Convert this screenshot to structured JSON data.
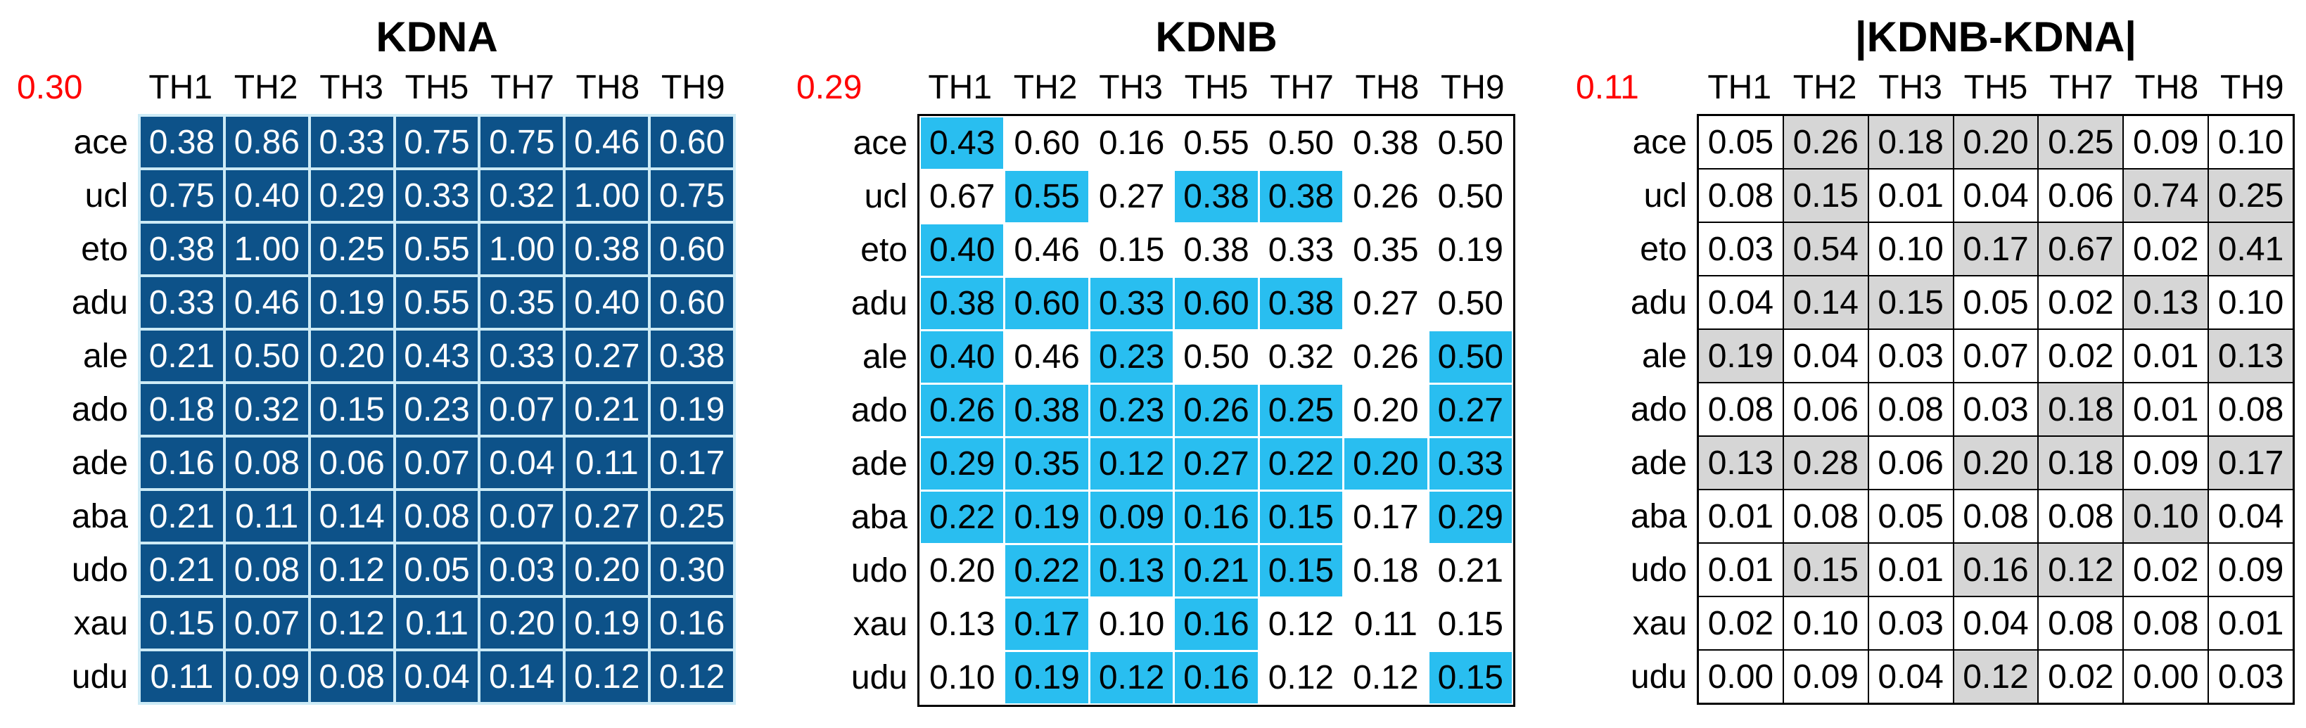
{
  "figure": {
    "background": "#FFFFFF",
    "threshold_color": "#FF0000"
  },
  "chart_data": [
    {
      "type": "heatmap",
      "title": "KDNA",
      "threshold": "0.30",
      "columns": [
        "TH1",
        "TH2",
        "TH3",
        "TH5",
        "TH7",
        "TH8",
        "TH9"
      ],
      "rows": [
        "ace",
        "ucl",
        "eto",
        "adu",
        "ale",
        "ado",
        "ade",
        "aba",
        "udo",
        "xau",
        "udu"
      ],
      "values": [
        [
          "0.38",
          "0.86",
          "0.33",
          "0.75",
          "0.75",
          "0.46",
          "0.60"
        ],
        [
          "0.75",
          "0.40",
          "0.29",
          "0.33",
          "0.32",
          "1.00",
          "0.75"
        ],
        [
          "0.38",
          "1.00",
          "0.25",
          "0.55",
          "1.00",
          "0.38",
          "0.60"
        ],
        [
          "0.33",
          "0.46",
          "0.19",
          "0.55",
          "0.35",
          "0.40",
          "0.60"
        ],
        [
          "0.21",
          "0.50",
          "0.20",
          "0.43",
          "0.33",
          "0.27",
          "0.38"
        ],
        [
          "0.18",
          "0.32",
          "0.15",
          "0.23",
          "0.07",
          "0.21",
          "0.19"
        ],
        [
          "0.16",
          "0.08",
          "0.06",
          "0.07",
          "0.04",
          "0.11",
          "0.17"
        ],
        [
          "0.21",
          "0.11",
          "0.14",
          "0.08",
          "0.07",
          "0.27",
          "0.25"
        ],
        [
          "0.21",
          "0.08",
          "0.12",
          "0.05",
          "0.03",
          "0.20",
          "0.30"
        ],
        [
          "0.15",
          "0.07",
          "0.12",
          "0.11",
          "0.20",
          "0.19",
          "0.16"
        ],
        [
          "0.11",
          "0.09",
          "0.08",
          "0.04",
          "0.14",
          "0.12",
          "0.12"
        ]
      ],
      "highlight": null,
      "style": {
        "cell_bg": "#0D5289",
        "cell_text": "#FFFFFF",
        "grid_color": "#CDEBF6"
      }
    },
    {
      "type": "heatmap",
      "title": "KDNB",
      "threshold": "0.29",
      "columns": [
        "TH1",
        "TH2",
        "TH3",
        "TH5",
        "TH7",
        "TH8",
        "TH9"
      ],
      "rows": [
        "ace",
        "ucl",
        "eto",
        "adu",
        "ale",
        "ado",
        "ade",
        "aba",
        "udo",
        "xau",
        "udu"
      ],
      "values": [
        [
          "0.43",
          "0.60",
          "0.16",
          "0.55",
          "0.50",
          "0.38",
          "0.50"
        ],
        [
          "0.67",
          "0.55",
          "0.27",
          "0.38",
          "0.38",
          "0.26",
          "0.50"
        ],
        [
          "0.40",
          "0.46",
          "0.15",
          "0.38",
          "0.33",
          "0.35",
          "0.19"
        ],
        [
          "0.38",
          "0.60",
          "0.33",
          "0.60",
          "0.38",
          "0.27",
          "0.50"
        ],
        [
          "0.40",
          "0.46",
          "0.23",
          "0.50",
          "0.32",
          "0.26",
          "0.50"
        ],
        [
          "0.26",
          "0.38",
          "0.23",
          "0.26",
          "0.25",
          "0.20",
          "0.27"
        ],
        [
          "0.29",
          "0.35",
          "0.12",
          "0.27",
          "0.22",
          "0.20",
          "0.33"
        ],
        [
          "0.22",
          "0.19",
          "0.09",
          "0.16",
          "0.15",
          "0.17",
          "0.29"
        ],
        [
          "0.20",
          "0.22",
          "0.13",
          "0.21",
          "0.15",
          "0.18",
          "0.21"
        ],
        [
          "0.13",
          "0.17",
          "0.10",
          "0.16",
          "0.12",
          "0.11",
          "0.15"
        ],
        [
          "0.10",
          "0.19",
          "0.12",
          "0.16",
          "0.12",
          "0.12",
          "0.15"
        ]
      ],
      "highlight": [
        [
          1,
          0,
          0,
          0,
          0,
          0,
          0
        ],
        [
          0,
          1,
          0,
          1,
          1,
          0,
          0
        ],
        [
          1,
          0,
          0,
          0,
          0,
          0,
          0
        ],
        [
          1,
          1,
          1,
          1,
          1,
          0,
          0
        ],
        [
          1,
          0,
          1,
          0,
          0,
          0,
          1
        ],
        [
          1,
          1,
          1,
          1,
          1,
          0,
          1
        ],
        [
          1,
          1,
          1,
          1,
          1,
          1,
          1
        ],
        [
          1,
          1,
          1,
          1,
          1,
          0,
          1
        ],
        [
          0,
          1,
          1,
          1,
          1,
          0,
          0
        ],
        [
          0,
          1,
          0,
          1,
          0,
          0,
          0
        ],
        [
          0,
          1,
          1,
          1,
          0,
          0,
          1
        ]
      ],
      "style": {
        "cell_bg": "#FFFFFF",
        "cell_text": "#000000",
        "highlight_bg": "#29BEF0",
        "outer_border": "#000000"
      }
    },
    {
      "type": "heatmap",
      "title": "|KDNB-KDNA|",
      "threshold": "0.11",
      "columns": [
        "TH1",
        "TH2",
        "TH3",
        "TH5",
        "TH7",
        "TH8",
        "TH9"
      ],
      "rows": [
        "ace",
        "ucl",
        "eto",
        "adu",
        "ale",
        "ado",
        "ade",
        "aba",
        "udo",
        "xau",
        "udu"
      ],
      "values": [
        [
          "0.05",
          "0.26",
          "0.18",
          "0.20",
          "0.25",
          "0.09",
          "0.10"
        ],
        [
          "0.08",
          "0.15",
          "0.01",
          "0.04",
          "0.06",
          "0.74",
          "0.25"
        ],
        [
          "0.03",
          "0.54",
          "0.10",
          "0.17",
          "0.67",
          "0.02",
          "0.41"
        ],
        [
          "0.04",
          "0.14",
          "0.15",
          "0.05",
          "0.02",
          "0.13",
          "0.10"
        ],
        [
          "0.19",
          "0.04",
          "0.03",
          "0.07",
          "0.02",
          "0.01",
          "0.13"
        ],
        [
          "0.08",
          "0.06",
          "0.08",
          "0.03",
          "0.18",
          "0.01",
          "0.08"
        ],
        [
          "0.13",
          "0.28",
          "0.06",
          "0.20",
          "0.18",
          "0.09",
          "0.17"
        ],
        [
          "0.01",
          "0.08",
          "0.05",
          "0.08",
          "0.08",
          "0.10",
          "0.04"
        ],
        [
          "0.01",
          "0.15",
          "0.01",
          "0.16",
          "0.12",
          "0.02",
          "0.09"
        ],
        [
          "0.02",
          "0.10",
          "0.03",
          "0.04",
          "0.08",
          "0.08",
          "0.01"
        ],
        [
          "0.00",
          "0.09",
          "0.04",
          "0.12",
          "0.02",
          "0.00",
          "0.03"
        ]
      ],
      "highlight": [
        [
          0,
          1,
          1,
          1,
          1,
          0,
          0
        ],
        [
          0,
          1,
          0,
          0,
          0,
          1,
          1
        ],
        [
          0,
          1,
          0,
          1,
          1,
          0,
          1
        ],
        [
          0,
          1,
          1,
          0,
          0,
          1,
          0
        ],
        [
          1,
          0,
          0,
          0,
          0,
          0,
          1
        ],
        [
          0,
          0,
          0,
          0,
          1,
          0,
          0
        ],
        [
          1,
          1,
          0,
          1,
          1,
          0,
          1
        ],
        [
          0,
          0,
          0,
          0,
          0,
          1,
          0
        ],
        [
          0,
          1,
          0,
          1,
          1,
          0,
          0
        ],
        [
          0,
          0,
          0,
          0,
          0,
          0,
          0
        ],
        [
          0,
          0,
          0,
          1,
          0,
          0,
          0
        ]
      ],
      "style": {
        "cell_bg": "#FFFFFF",
        "cell_text": "#000000",
        "highlight_bg": "#D6D6D6",
        "grid_color": "#000000"
      }
    }
  ]
}
